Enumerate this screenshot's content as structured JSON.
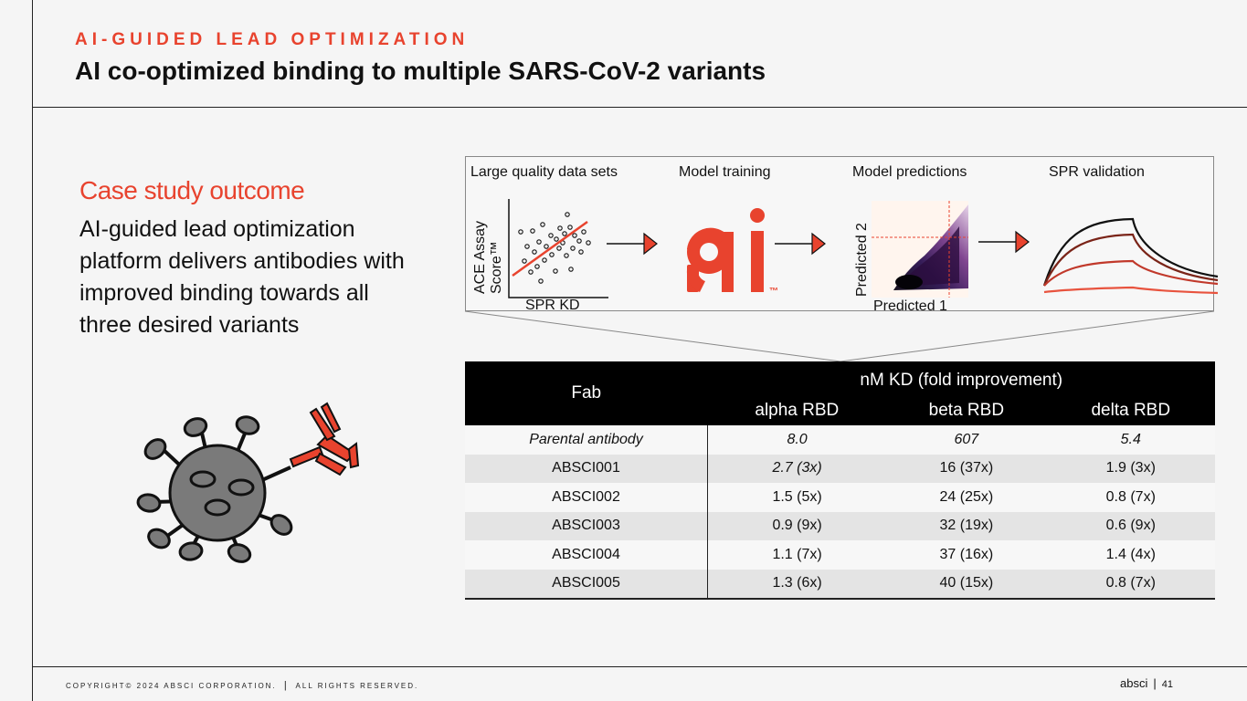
{
  "header": {
    "eyebrow": "AI-GUIDED LEAD OPTIMIZATION",
    "title": "AI co-optimized binding to multiple SARS-CoV-2 variants"
  },
  "case_study": {
    "title": "Case study outcome",
    "body": "AI-guided lead optimization platform delivers antibodies with improved binding towards all three desired variants"
  },
  "pipeline": {
    "steps": [
      "Large quality data sets",
      "Model training",
      "Model predictions",
      "SPR validation"
    ],
    "scatter": {
      "ylabel_1": "ACE Assay",
      "ylabel_2": "Score™",
      "xlabel": "SPR KD"
    },
    "logo": {
      "tm": "™"
    },
    "predictions": {
      "ylabel": "Predicted 2",
      "xlabel": "Predicted 1"
    }
  },
  "table": {
    "fab_header": "Fab",
    "group_header": "nM KD (fold improvement)",
    "columns": [
      "alpha RBD",
      "beta RBD",
      "delta RBD"
    ],
    "parental": {
      "prefix": "Parental",
      "suffix": " antibody",
      "values": [
        "8.0",
        "607",
        "5.4"
      ]
    },
    "rows": [
      {
        "fab": "ABSCI001",
        "values": [
          "2.7 (3x)",
          "16 (37x)",
          "1.9 (3x)"
        ]
      },
      {
        "fab": "ABSCI002",
        "values": [
          "1.5 (5x)",
          "24 (25x)",
          "0.8 (7x)"
        ]
      },
      {
        "fab": "ABSCI003",
        "values": [
          "0.9 (9x)",
          "32 (19x)",
          "0.6 (9x)"
        ]
      },
      {
        "fab": "ABSCI004",
        "values": [
          "1.1 (7x)",
          "37 (16x)",
          "1.4 (4x)"
        ]
      },
      {
        "fab": "ABSCI005",
        "values": [
          "1.3 (6x)",
          "40 (15x)",
          "0.8 (7x)"
        ]
      }
    ]
  },
  "footer": {
    "copyright": "COPYRIGHT© 2024 ABSCI CORPORATION.",
    "separator": "|",
    "rights": "ALL RIGHTS RESERVED.",
    "brand": "absci",
    "page_number": "41"
  },
  "colors": {
    "accent": "#e8432e",
    "dark": "#111111",
    "table_header": "#000000",
    "stripe": "#e4e4e4"
  },
  "icons": [
    "virus-icon",
    "antibody-icon",
    "arrow-right-icon",
    "ai-logo"
  ]
}
